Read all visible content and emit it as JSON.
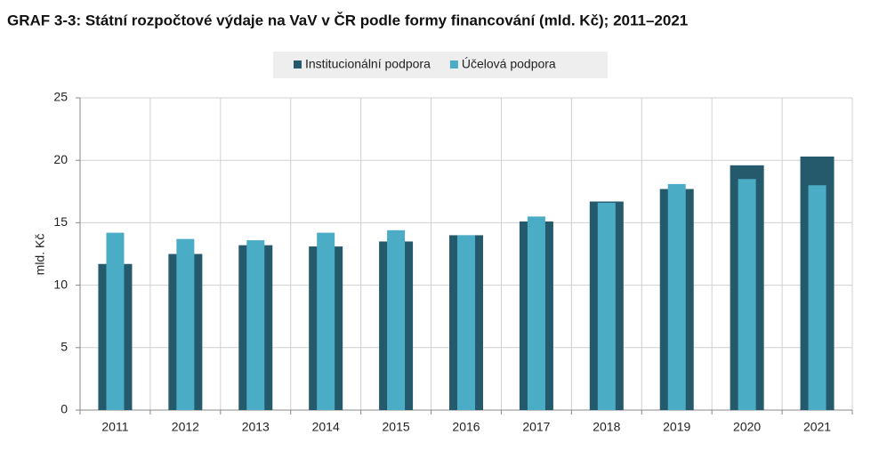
{
  "chart_data": {
    "type": "overlap-bar",
    "title": "GRAF 3-3: Státní rozpočtové výdaje na VaV v ČR podle formy financování (mld. Kč); 2011–2021",
    "y_label": "mld. Kč",
    "categories": [
      "2011",
      "2012",
      "2013",
      "2014",
      "2015",
      "2016",
      "2017",
      "2018",
      "2019",
      "2020",
      "2021"
    ],
    "series": [
      {
        "name": "Institucionální podpora",
        "color": "#245a6b",
        "values": [
          11.7,
          12.5,
          13.2,
          13.1,
          13.5,
          14.0,
          15.1,
          16.7,
          17.7,
          19.6,
          20.3
        ]
      },
      {
        "name": "Účelová podpora",
        "color": "#4bacc6",
        "values": [
          14.2,
          13.7,
          13.6,
          14.2,
          14.4,
          14.0,
          15.5,
          16.6,
          18.1,
          18.5,
          18.0
        ]
      }
    ],
    "ylim": [
      0,
      25
    ],
    "yticks": [
      0,
      5,
      10,
      15,
      20,
      25
    ],
    "grid": true,
    "legend": "top"
  }
}
